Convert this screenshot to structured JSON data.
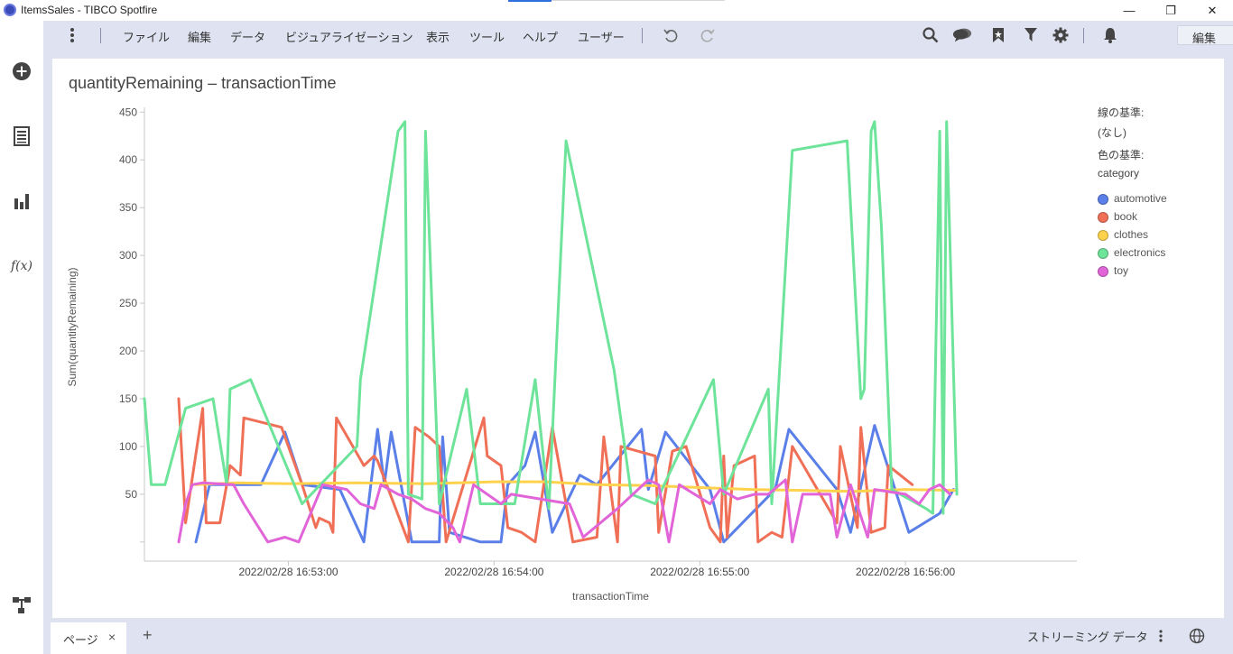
{
  "window": {
    "title": "ItemsSales - TIBCO Spotfire",
    "minimize": "—",
    "restore": "❐",
    "close": "✕"
  },
  "menu": {
    "items": [
      "ファイル",
      "編集",
      "データ",
      "ビジュアライゼーション",
      "表示",
      "ツール",
      "ヘルプ",
      "ユーザー"
    ],
    "mode_select": "編集"
  },
  "sidebar": {
    "icons": [
      "add-icon",
      "data-table-icon",
      "bar-chart-icon",
      "function-icon",
      "flow-icon"
    ],
    "function_label": "f(x)"
  },
  "visualization": {
    "title": "quantityRemaining – transactionTime"
  },
  "legend": {
    "line_by_title": "線の基準:",
    "line_by_value": "(なし)",
    "color_by_title": "色の基準:",
    "color_by_value": "category"
  },
  "chart_data": {
    "type": "line",
    "xlabel": "transactionTime",
    "ylabel": "Sum(quantityRemaining)",
    "ylim": [
      -20,
      455
    ],
    "yticks": [
      50,
      100,
      150,
      200,
      250,
      300,
      350,
      400,
      450
    ],
    "x_ticks": [
      {
        "t": 0,
        "label": "2022/02/28 16:53:00"
      },
      {
        "t": 60,
        "label": "2022/02/28 16:54:00"
      },
      {
        "t": 120,
        "label": "2022/02/28 16:55:00"
      },
      {
        "t": 180,
        "label": "2022/02/28 16:56:00"
      }
    ],
    "xlim": [
      -42,
      230
    ],
    "grid": false,
    "legend_position": "right",
    "series": [
      {
        "name": "automotive",
        "color": "#5b7fe8",
        "points": [
          [
            -27,
            0
          ],
          [
            -23,
            60
          ],
          [
            -14,
            60
          ],
          [
            -8,
            60
          ],
          [
            -1,
            115
          ],
          [
            4,
            60
          ],
          [
            15,
            55
          ],
          [
            22,
            0
          ],
          [
            26,
            118
          ],
          [
            28,
            60
          ],
          [
            30,
            115
          ],
          [
            36,
            0
          ],
          [
            44,
            0
          ],
          [
            45,
            110
          ],
          [
            47,
            10
          ],
          [
            56,
            0
          ],
          [
            62,
            0
          ],
          [
            64,
            60
          ],
          [
            69,
            80
          ],
          [
            72,
            115
          ],
          [
            77,
            10
          ],
          [
            85,
            70
          ],
          [
            90,
            60
          ],
          [
            103,
            118
          ],
          [
            105,
            55
          ],
          [
            110,
            115
          ],
          [
            123,
            55
          ],
          [
            127,
            0
          ],
          [
            142,
            55
          ],
          [
            146,
            118
          ],
          [
            160,
            55
          ],
          [
            164,
            10
          ],
          [
            171,
            122
          ],
          [
            181,
            10
          ],
          [
            190,
            30
          ],
          [
            194,
            55
          ]
        ]
      },
      {
        "name": "book",
        "color": "#f07057",
        "points": [
          [
            -32,
            150
          ],
          [
            -30,
            20
          ],
          [
            -25,
            140
          ],
          [
            -24,
            20
          ],
          [
            -20,
            20
          ],
          [
            -17,
            80
          ],
          [
            -14,
            70
          ],
          [
            -13,
            130
          ],
          [
            -2,
            120
          ],
          [
            4,
            60
          ],
          [
            8,
            15
          ],
          [
            9,
            25
          ],
          [
            12,
            20
          ],
          [
            13,
            10
          ],
          [
            14,
            130
          ],
          [
            22,
            80
          ],
          [
            25,
            90
          ],
          [
            26,
            85
          ],
          [
            35,
            0
          ],
          [
            37,
            120
          ],
          [
            41,
            110
          ],
          [
            44,
            100
          ],
          [
            46,
            0
          ],
          [
            57,
            130
          ],
          [
            58,
            90
          ],
          [
            62,
            80
          ],
          [
            64,
            15
          ],
          [
            68,
            10
          ],
          [
            72,
            0
          ],
          [
            77,
            120
          ],
          [
            83,
            0
          ],
          [
            90,
            5
          ],
          [
            92,
            110
          ],
          [
            96,
            0
          ],
          [
            97,
            100
          ],
          [
            102,
            95
          ],
          [
            107,
            90
          ],
          [
            108,
            10
          ],
          [
            112,
            95
          ],
          [
            116,
            100
          ],
          [
            123,
            15
          ],
          [
            126,
            0
          ],
          [
            127,
            90
          ],
          [
            128,
            5
          ],
          [
            130,
            80
          ],
          [
            136,
            90
          ],
          [
            137,
            0
          ],
          [
            141,
            10
          ],
          [
            144,
            5
          ],
          [
            147,
            100
          ],
          [
            160,
            20
          ],
          [
            161,
            100
          ],
          [
            166,
            15
          ],
          [
            167,
            120
          ],
          [
            170,
            10
          ],
          [
            174,
            15
          ],
          [
            175,
            80
          ],
          [
            182,
            60
          ]
        ]
      },
      {
        "name": "clothes",
        "color": "#ffd24d",
        "points": [
          [
            -27,
            60
          ],
          [
            -15,
            62
          ],
          [
            0,
            61
          ],
          [
            20,
            62
          ],
          [
            40,
            61
          ],
          [
            60,
            63
          ],
          [
            75,
            63
          ],
          [
            90,
            60
          ],
          [
            105,
            59
          ],
          [
            120,
            57
          ],
          [
            135,
            55
          ],
          [
            150,
            54
          ],
          [
            165,
            53
          ],
          [
            180,
            55
          ],
          [
            195,
            54
          ]
        ]
      },
      {
        "name": "electronics",
        "color": "#6ee39a",
        "points": [
          [
            -42,
            150
          ],
          [
            -40,
            60
          ],
          [
            -36,
            60
          ],
          [
            -30,
            140
          ],
          [
            -22,
            150
          ],
          [
            -18,
            60
          ],
          [
            -17,
            160
          ],
          [
            -11,
            170
          ],
          [
            4,
            40
          ],
          [
            20,
            100
          ],
          [
            21,
            170
          ],
          [
            32,
            430
          ],
          [
            34,
            440
          ],
          [
            35,
            50
          ],
          [
            39,
            45
          ],
          [
            40,
            430
          ],
          [
            44,
            40
          ],
          [
            52,
            160
          ],
          [
            56,
            40
          ],
          [
            66,
            40
          ],
          [
            72,
            170
          ],
          [
            76,
            35
          ],
          [
            81,
            420
          ],
          [
            95,
            180
          ],
          [
            100,
            50
          ],
          [
            107,
            40
          ],
          [
            124,
            170
          ],
          [
            127,
            50
          ],
          [
            140,
            160
          ],
          [
            141,
            40
          ],
          [
            147,
            410
          ],
          [
            163,
            420
          ],
          [
            167,
            150
          ],
          [
            168,
            160
          ],
          [
            170,
            430
          ],
          [
            171,
            440
          ],
          [
            173,
            330
          ],
          [
            176,
            55
          ],
          [
            186,
            35
          ],
          [
            188,
            30
          ],
          [
            190,
            430
          ],
          [
            191,
            30
          ],
          [
            192,
            440
          ],
          [
            195,
            50
          ]
        ]
      },
      {
        "name": "toy",
        "color": "#e165d8",
        "points": [
          [
            -32,
            0
          ],
          [
            -30,
            40
          ],
          [
            -28,
            60
          ],
          [
            -25,
            62
          ],
          [
            -16,
            60
          ],
          [
            -13,
            40
          ],
          [
            -6,
            0
          ],
          [
            -1,
            5
          ],
          [
            3,
            0
          ],
          [
            10,
            60
          ],
          [
            17,
            55
          ],
          [
            21,
            40
          ],
          [
            25,
            35
          ],
          [
            27,
            60
          ],
          [
            32,
            50
          ],
          [
            36,
            45
          ],
          [
            38,
            40
          ],
          [
            40,
            35
          ],
          [
            44,
            30
          ],
          [
            48,
            15
          ],
          [
            50,
            0
          ],
          [
            54,
            60
          ],
          [
            62,
            40
          ],
          [
            65,
            50
          ],
          [
            82,
            40
          ],
          [
            86,
            5
          ],
          [
            96,
            35
          ],
          [
            105,
            65
          ],
          [
            108,
            60
          ],
          [
            111,
            0
          ],
          [
            114,
            60
          ],
          [
            123,
            40
          ],
          [
            126,
            55
          ],
          [
            131,
            45
          ],
          [
            136,
            50
          ],
          [
            140,
            50
          ],
          [
            145,
            65
          ],
          [
            147,
            0
          ],
          [
            150,
            50
          ],
          [
            158,
            50
          ],
          [
            160,
            5
          ],
          [
            164,
            60
          ],
          [
            169,
            5
          ],
          [
            171,
            55
          ],
          [
            180,
            50
          ],
          [
            184,
            40
          ],
          [
            187,
            55
          ],
          [
            190,
            60
          ],
          [
            193,
            50
          ]
        ]
      }
    ]
  },
  "tabs": {
    "page_label": "ページ",
    "close": "×",
    "add": "+",
    "streaming_label": "ストリーミング データ"
  }
}
